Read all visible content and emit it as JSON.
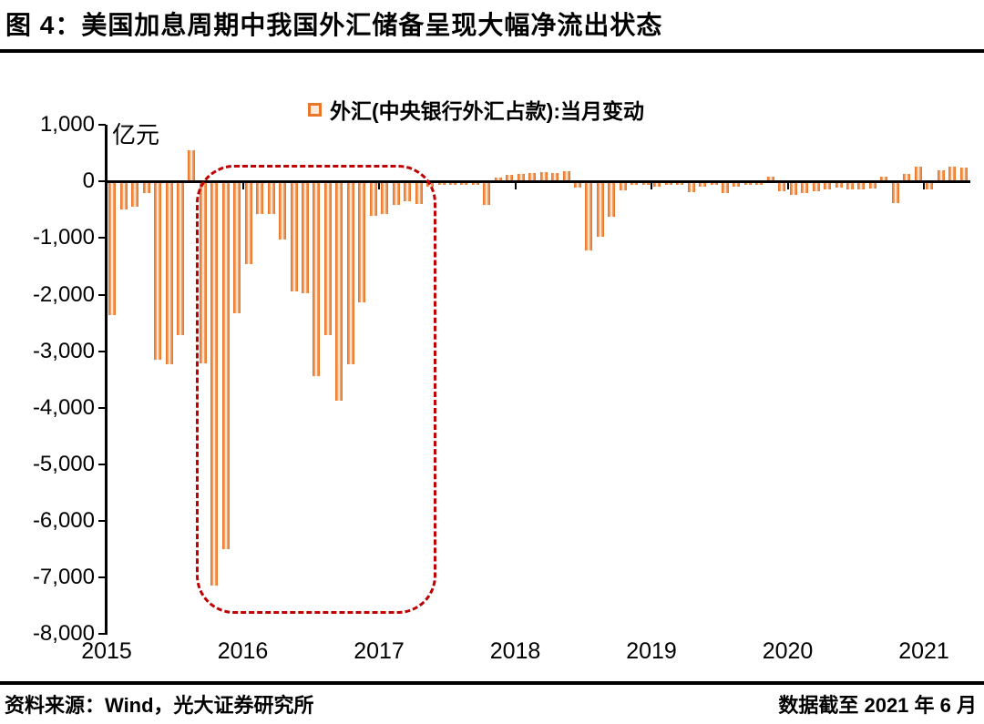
{
  "title": "图 4：美国加息周期中我国外汇储备呈现大幅净流出状态",
  "legend": {
    "label": "外汇(中央银行外汇占款):当月变动"
  },
  "unit_label": "亿元",
  "footer": {
    "source": "资料来源：Wind，光大证券研究所",
    "cutoff": "数据截至 2021 年 6 月"
  },
  "colors": {
    "bar_border": "#E8772B",
    "bar_fill": "#F3A266",
    "bar_core": "#FBE3D2",
    "legend_swatch_fill": "#FCEBDD",
    "annotation": "#C00000",
    "axis": "#000000"
  },
  "chart_data": {
    "type": "bar",
    "title": "外汇(中央银行外汇占款):当月变动",
    "ylabel": "亿元",
    "ylim": [
      -8000,
      1000
    ],
    "grid": false,
    "legend_position": "top-center",
    "ytick_labels": [
      "1,000",
      "0",
      "-1,000",
      "-2,000",
      "-3,000",
      "-4,000",
      "-5,000",
      "-6,000",
      "-7,000",
      "-8,000"
    ],
    "xtick_labels": [
      "2015",
      "2016",
      "2017",
      "2018",
      "2019",
      "2020",
      "2021"
    ],
    "x": [
      "2015-01",
      "2015-02",
      "2015-03",
      "2015-04",
      "2015-05",
      "2015-06",
      "2015-07",
      "2015-08",
      "2015-09",
      "2015-10",
      "2015-11",
      "2015-12",
      "2016-01",
      "2016-02",
      "2016-03",
      "2016-04",
      "2016-05",
      "2016-06",
      "2016-07",
      "2016-08",
      "2016-09",
      "2016-10",
      "2016-11",
      "2016-12",
      "2017-01",
      "2017-02",
      "2017-03",
      "2017-04",
      "2017-05",
      "2017-06",
      "2017-07",
      "2017-08",
      "2017-09",
      "2017-10",
      "2017-11",
      "2017-12",
      "2018-01",
      "2018-02",
      "2018-03",
      "2018-04",
      "2018-05",
      "2018-06",
      "2018-07",
      "2018-08",
      "2018-09",
      "2018-10",
      "2018-11",
      "2018-12",
      "2019-01",
      "2019-02",
      "2019-03",
      "2019-04",
      "2019-05",
      "2019-06",
      "2019-07",
      "2019-08",
      "2019-09",
      "2019-10",
      "2019-11",
      "2019-12",
      "2020-01",
      "2020-02",
      "2020-03",
      "2020-04",
      "2020-05",
      "2020-06",
      "2020-07",
      "2020-08",
      "2020-09",
      "2020-10",
      "2020-11",
      "2020-12",
      "2021-01",
      "2021-02",
      "2021-03",
      "2021-04"
    ],
    "values": [
      -2340,
      -470,
      -430,
      -175,
      -3125,
      -3205,
      -2700,
      550,
      -3190,
      -7120,
      -6480,
      -2300,
      -1435,
      -545,
      -545,
      -1000,
      -1920,
      -1950,
      -3415,
      -2700,
      -3850,
      -3210,
      -2110,
      -580,
      -550,
      -390,
      -330,
      -380,
      -60,
      -35,
      -30,
      -30,
      -30,
      -390,
      75,
      110,
      135,
      150,
      160,
      150,
      190,
      -80,
      -1200,
      -955,
      -605,
      -125,
      -40,
      -40,
      -65,
      -40,
      -40,
      -165,
      -65,
      -40,
      -175,
      -65,
      -40,
      -40,
      90,
      -150,
      -205,
      -175,
      -150,
      -120,
      -85,
      -120,
      -110,
      -95,
      85,
      -350,
      135,
      265,
      -120,
      205,
      265,
      245
    ],
    "annotation": {
      "shape": "rounded-dashed-box",
      "x_start": "2015-09",
      "x_end": "2017-05",
      "y_top_value": 290,
      "y_bottom_value": -7665,
      "color": "#C00000"
    }
  }
}
